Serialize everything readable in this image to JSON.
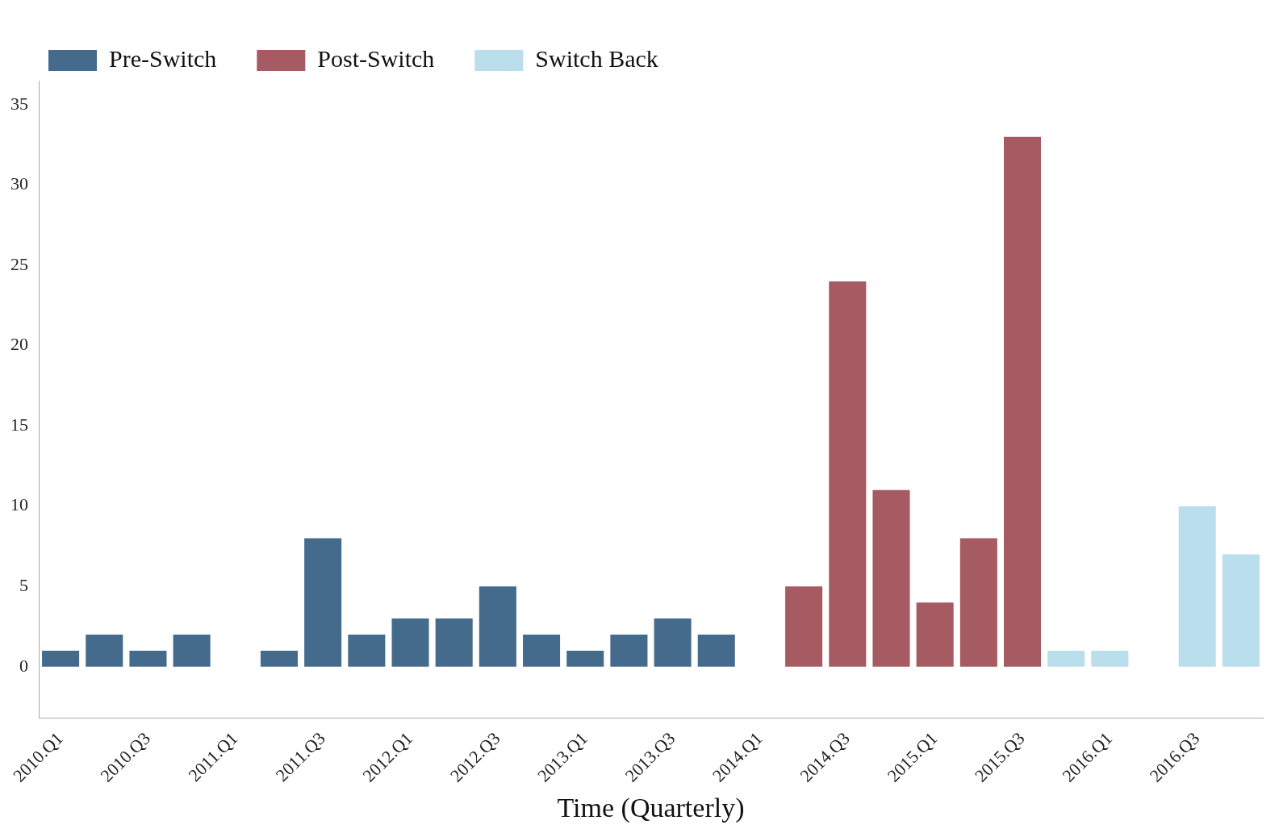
{
  "chart_data": {
    "type": "bar",
    "xlabel": "Time (Quarterly)",
    "categories": [
      "2010.Q1",
      null,
      "2010.Q3",
      null,
      "2011.Q1",
      null,
      "2011.Q3",
      null,
      "2012.Q1",
      null,
      "2012.Q3",
      null,
      "2013.Q1",
      null,
      "2013.Q3",
      null,
      "2014.Q1",
      null,
      "2014.Q3",
      null,
      "2015.Q1",
      null,
      "2015.Q3",
      null,
      "2016.Q1",
      null,
      "2016.Q3",
      null
    ],
    "series": [
      {
        "name": "Pre-Switch",
        "color": "#456b8c",
        "values": [
          1,
          2,
          1,
          2,
          null,
          1,
          8,
          2,
          3,
          3,
          5,
          2,
          1,
          2,
          3,
          2,
          null,
          null,
          null,
          null,
          null,
          null,
          null,
          null,
          null,
          null,
          null,
          null
        ]
      },
      {
        "name": "Post-Switch",
        "color": "#a65a61",
        "values": [
          null,
          null,
          null,
          null,
          null,
          null,
          null,
          null,
          null,
          null,
          null,
          null,
          null,
          null,
          null,
          null,
          null,
          5,
          24,
          11,
          4,
          8,
          33,
          null,
          null,
          null,
          null,
          null
        ]
      },
      {
        "name": "Switch Back",
        "color": "#badeeb",
        "values": [
          null,
          null,
          null,
          null,
          null,
          null,
          null,
          null,
          null,
          null,
          null,
          null,
          null,
          null,
          null,
          null,
          null,
          null,
          null,
          null,
          null,
          null,
          null,
          1,
          1,
          null,
          10,
          7
        ]
      }
    ],
    "ylim": [
      -3.2,
      36.5
    ],
    "yticks": [
      0,
      5,
      10,
      15,
      20,
      25,
      30,
      35
    ],
    "grid": false,
    "legend": "top left"
  }
}
